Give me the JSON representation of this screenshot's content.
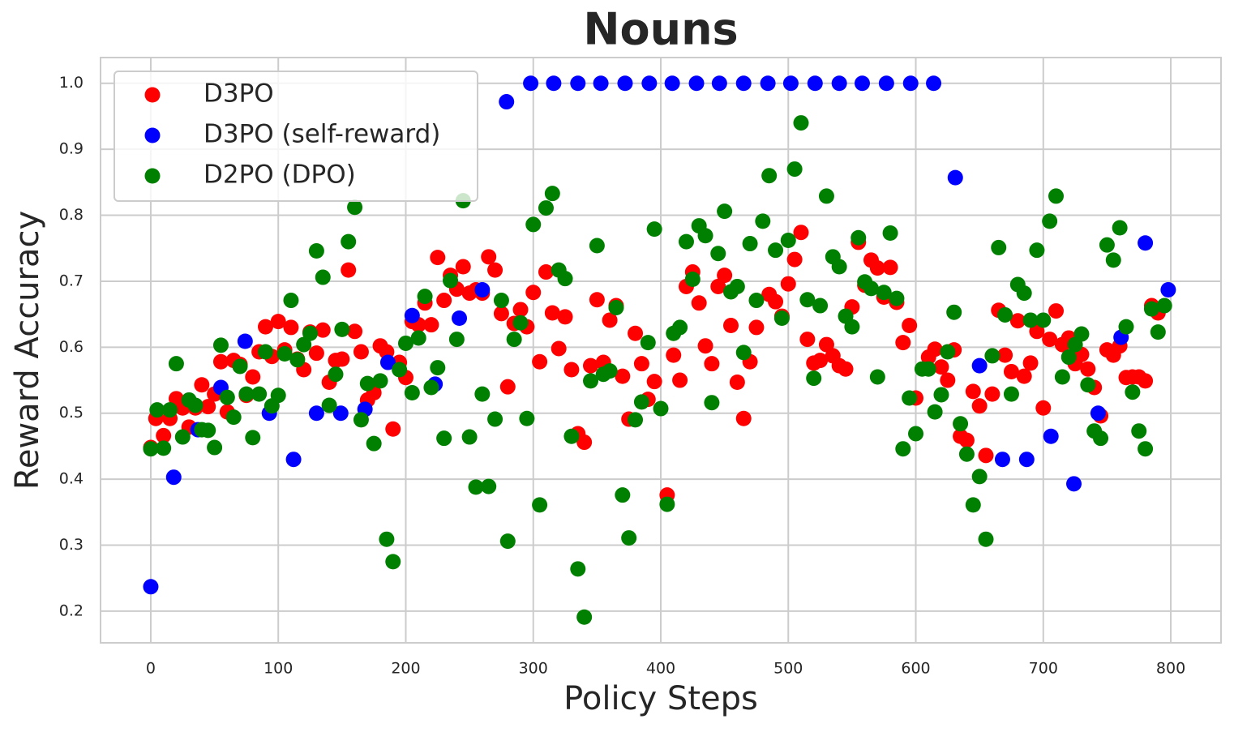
{
  "chart_data": {
    "type": "scatter",
    "title": "Nouns",
    "x_label": "Policy Steps",
    "y_label": "Reward Accuracy",
    "xlim": [
      -39.4,
      839.4
    ],
    "ylim": [
      0.152,
      1.039
    ],
    "xticks": [
      0,
      100,
      200,
      300,
      400,
      500,
      600,
      700,
      800
    ],
    "yticks": [
      0.2,
      0.3,
      0.4,
      0.5,
      0.6,
      0.7,
      0.8,
      0.9,
      {
        "value": 1,
        "label": "1.0"
      }
    ],
    "grid": true,
    "legend_position": "upper left",
    "series": [
      {
        "name": "D3PO",
        "color": "#ff0000",
        "x": [
          0,
          4,
          10,
          15,
          20,
          25,
          30,
          35,
          40,
          45,
          50,
          55,
          60,
          65,
          70,
          75,
          80,
          85,
          90,
          95,
          100,
          105,
          110,
          115,
          120,
          125,
          130,
          135,
          140,
          145,
          150,
          155,
          160,
          165,
          170,
          175,
          180,
          185,
          190,
          195,
          200,
          205,
          210,
          215,
          220,
          225,
          230,
          235,
          240,
          245,
          250,
          255,
          260,
          265,
          270,
          275,
          280,
          285,
          290,
          295,
          300,
          305,
          310,
          315,
          320,
          325,
          330,
          335,
          340,
          345,
          350,
          355,
          360,
          365,
          370,
          375,
          380,
          385,
          390,
          395,
          405,
          410,
          415,
          420,
          425,
          430,
          435,
          440,
          445,
          450,
          455,
          460,
          465,
          470,
          475,
          485,
          490,
          495,
          500,
          505,
          510,
          515,
          520,
          525,
          530,
          535,
          540,
          545,
          550,
          555,
          560,
          565,
          570,
          575,
          580,
          585,
          590,
          595,
          600,
          610,
          615,
          620,
          625,
          630,
          635,
          640,
          645,
          650,
          655,
          660,
          665,
          670,
          675,
          680,
          685,
          690,
          695,
          700,
          705,
          710,
          715,
          720,
          725,
          730,
          735,
          740,
          745,
          750,
          755,
          760,
          765,
          770,
          775,
          780,
          785,
          790
        ],
        "values": [
          0.448,
          0.492,
          0.466,
          0.492,
          0.522,
          0.508,
          0.479,
          0.508,
          0.543,
          0.51,
          0.529,
          0.578,
          0.502,
          0.58,
          0.574,
          0.527,
          0.555,
          0.593,
          0.631,
          0.586,
          0.639,
          0.596,
          0.63,
          0.582,
          0.566,
          0.623,
          0.591,
          0.626,
          0.547,
          0.58,
          0.582,
          0.717,
          0.624,
          0.593,
          0.52,
          0.531,
          0.602,
          0.593,
          0.476,
          0.577,
          0.554,
          0.639,
          0.634,
          0.667,
          0.634,
          0.736,
          0.671,
          0.709,
          0.688,
          0.722,
          0.682,
          0.687,
          0.682,
          0.737,
          0.717,
          0.651,
          0.54,
          0.636,
          0.657,
          0.631,
          0.683,
          0.578,
          0.714,
          0.652,
          0.598,
          0.646,
          0.566,
          0.469,
          0.456,
          0.572,
          0.672,
          0.577,
          0.641,
          0.663,
          0.556,
          0.491,
          0.621,
          0.575,
          0.521,
          0.548,
          0.376,
          0.588,
          0.55,
          0.692,
          0.714,
          0.667,
          0.602,
          0.575,
          0.692,
          0.709,
          0.633,
          0.547,
          0.492,
          0.578,
          0.63,
          0.68,
          0.669,
          0.647,
          0.696,
          0.733,
          0.774,
          0.612,
          0.576,
          0.58,
          0.604,
          0.587,
          0.572,
          0.567,
          0.661,
          0.759,
          0.694,
          0.732,
          0.72,
          0.676,
          0.721,
          0.668,
          0.607,
          0.633,
          0.523,
          0.585,
          0.597,
          0.57,
          0.55,
          0.596,
          0.465,
          0.459,
          0.533,
          0.511,
          0.436,
          0.529,
          0.656,
          0.588,
          0.563,
          0.64,
          0.556,
          0.576,
          0.624,
          0.508,
          0.612,
          0.655,
          0.604,
          0.614,
          0.575,
          0.589,
          0.567,
          0.539,
          0.496,
          0.596,
          0.588,
          0.602,
          0.554,
          0.555,
          0.555,
          0.549,
          0.663,
          0.652
        ]
      },
      {
        "name": "D3PO (self-reward)",
        "color": "#0000ff",
        "x": [
          0,
          18,
          37,
          55,
          74,
          93,
          112,
          130,
          149,
          168,
          186,
          205,
          223,
          242,
          260,
          279,
          298,
          316,
          335,
          353,
          372,
          391,
          409,
          428,
          446,
          465,
          484,
          502,
          521,
          540,
          558,
          577,
          596,
          614,
          631,
          650,
          668,
          687,
          706,
          724,
          743,
          761,
          780,
          798
        ],
        "values": [
          0.237,
          0.403,
          0.475,
          0.539,
          0.609,
          0.5,
          0.43,
          0.5,
          0.5,
          0.506,
          0.577,
          0.648,
          0.544,
          0.644,
          0.687,
          0.972,
          1,
          1,
          1,
          1,
          1,
          1,
          1,
          1,
          1,
          1,
          1,
          1,
          1,
          1,
          1,
          1,
          1,
          1,
          0.857,
          0.572,
          0.43,
          0.43,
          0.465,
          0.393,
          0.5,
          0.615,
          0.758,
          0.687
        ]
      },
      {
        "name": "D2PO (DPO)",
        "color": "#008000",
        "x": [
          0,
          5,
          10,
          15,
          20,
          25,
          30,
          35,
          40,
          45,
          50,
          55,
          60,
          65,
          70,
          75,
          80,
          85,
          90,
          95,
          100,
          105,
          110,
          115,
          120,
          125,
          130,
          135,
          140,
          145,
          150,
          155,
          160,
          165,
          170,
          175,
          180,
          185,
          190,
          195,
          200,
          205,
          210,
          215,
          220,
          225,
          230,
          235,
          240,
          245,
          250,
          255,
          260,
          265,
          270,
          275,
          280,
          285,
          290,
          295,
          300,
          305,
          310,
          315,
          320,
          325,
          330,
          335,
          340,
          345,
          350,
          355,
          360,
          365,
          370,
          375,
          380,
          385,
          390,
          395,
          400,
          405,
          410,
          415,
          420,
          425,
          430,
          435,
          440,
          445,
          450,
          455,
          460,
          465,
          470,
          475,
          480,
          485,
          490,
          495,
          500,
          505,
          510,
          515,
          520,
          525,
          530,
          535,
          540,
          545,
          550,
          555,
          560,
          565,
          570,
          575,
          580,
          585,
          590,
          595,
          600,
          605,
          610,
          615,
          620,
          625,
          630,
          635,
          640,
          645,
          650,
          655,
          660,
          665,
          670,
          675,
          680,
          685,
          690,
          695,
          700,
          705,
          710,
          715,
          720,
          725,
          730,
          735,
          740,
          745,
          750,
          755,
          760,
          765,
          770,
          775,
          780,
          785,
          790,
          795
        ],
        "values": [
          0.446,
          0.505,
          0.447,
          0.505,
          0.575,
          0.464,
          0.52,
          0.512,
          0.475,
          0.474,
          0.448,
          0.603,
          0.524,
          0.494,
          0.571,
          0.529,
          0.463,
          0.529,
          0.593,
          0.511,
          0.527,
          0.59,
          0.671,
          0.581,
          0.604,
          0.621,
          0.746,
          0.706,
          0.512,
          0.559,
          0.627,
          0.76,
          0.812,
          0.49,
          0.545,
          0.454,
          0.549,
          0.309,
          0.275,
          0.566,
          0.606,
          0.531,
          0.614,
          0.677,
          0.539,
          0.569,
          0.462,
          0.701,
          0.612,
          0.822,
          0.464,
          0.388,
          0.529,
          0.389,
          0.491,
          0.671,
          0.306,
          0.612,
          0.637,
          0.492,
          0.786,
          0.361,
          0.811,
          0.833,
          0.717,
          0.704,
          0.465,
          0.264,
          0.191,
          0.549,
          0.754,
          0.559,
          0.564,
          0.66,
          0.376,
          0.311,
          0.49,
          0.517,
          0.607,
          0.779,
          0.507,
          0.362,
          0.621,
          0.63,
          0.76,
          0.703,
          0.784,
          0.769,
          0.516,
          0.742,
          0.806,
          0.684,
          0.692,
          0.592,
          0.757,
          0.671,
          0.791,
          0.86,
          0.747,
          0.644,
          0.762,
          0.87,
          0.94,
          0.672,
          0.553,
          0.663,
          0.829,
          0.737,
          0.722,
          0.647,
          0.631,
          0.766,
          0.699,
          0.689,
          0.555,
          0.683,
          0.773,
          0.674,
          0.446,
          0.523,
          0.469,
          0.567,
          0.567,
          0.502,
          0.528,
          0.593,
          0.653,
          0.484,
          0.438,
          0.361,
          0.404,
          0.309,
          0.587,
          0.751,
          0.649,
          0.529,
          0.695,
          0.682,
          0.641,
          0.747,
          0.641,
          0.791,
          0.829,
          0.555,
          0.585,
          0.604,
          0.62,
          0.543,
          0.473,
          0.462,
          0.755,
          0.732,
          0.781,
          0.631,
          0.532,
          0.473,
          0.446,
          0.658,
          0.623,
          0.663
        ]
      }
    ]
  }
}
